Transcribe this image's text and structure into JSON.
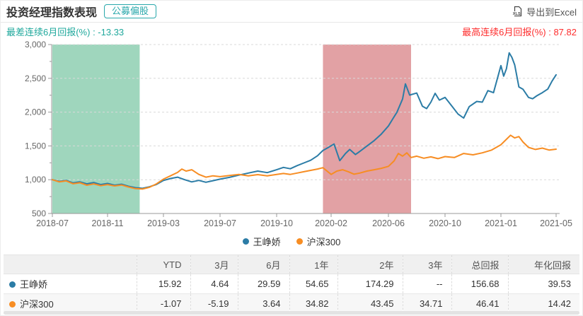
{
  "header": {
    "title": "投资经理指数表现",
    "badge": "公募偏股",
    "export_label": "导出到Excel"
  },
  "stats": {
    "separator": " : ",
    "worst_label": "最差连续6月回报(%)",
    "worst_value": "-13.33",
    "worst_color": "#1fa89c",
    "best_label": "最高连续6月回报(%)",
    "best_value": "87.82",
    "best_color": "#fe2d2d"
  },
  "chart_data": {
    "type": "line",
    "title": "",
    "xlabel": "",
    "ylabel": "",
    "ylim": [
      500,
      3000
    ],
    "y_ticks": [
      500,
      1000,
      1500,
      2000,
      2500,
      3000
    ],
    "grid": "dashed-horizontal",
    "legend_position": "bottom-center",
    "x_unit": "months since 2018-07",
    "x_tick_labels": [
      "2018-07",
      "2018-11",
      "2019-03",
      "2019-07",
      "2019-10",
      "2020-02",
      "2020-06",
      "2020-10",
      "2021-01",
      "2021-05"
    ],
    "series": [
      {
        "name": "王峥娇",
        "color": "#2b7ca6",
        "points": [
          [
            0,
            1000
          ],
          [
            0.5,
            975
          ],
          [
            1,
            990
          ],
          [
            1.5,
            952
          ],
          [
            2,
            968
          ],
          [
            2.5,
            938
          ],
          [
            3,
            958
          ],
          [
            3.5,
            928
          ],
          [
            4,
            945
          ],
          [
            4.5,
            918
          ],
          [
            5,
            933
          ],
          [
            5.5,
            903
          ],
          [
            6,
            882
          ],
          [
            6.5,
            872
          ],
          [
            7,
            895
          ],
          [
            7.5,
            930
          ],
          [
            8,
            988
          ],
          [
            8.5,
            1018
          ],
          [
            9,
            1038
          ],
          [
            9.5,
            1000
          ],
          [
            10,
            968
          ],
          [
            10.5,
            990
          ],
          [
            11,
            962
          ],
          [
            11.5,
            985
          ],
          [
            12,
            1008
          ],
          [
            12.5,
            1035
          ],
          [
            13,
            1068
          ],
          [
            13.5,
            1098
          ],
          [
            14,
            1128
          ],
          [
            14.5,
            1105
          ],
          [
            15,
            1148
          ],
          [
            15.5,
            1182
          ],
          [
            16,
            1162
          ],
          [
            16.5,
            1208
          ],
          [
            17,
            1248
          ],
          [
            17.5,
            1288
          ],
          [
            18,
            1355
          ],
          [
            18.4,
            1432
          ],
          [
            18.8,
            1478
          ],
          [
            19.2,
            1528
          ],
          [
            19.6,
            1282
          ],
          [
            20,
            1388
          ],
          [
            20.3,
            1448
          ],
          [
            20.7,
            1372
          ],
          [
            21,
            1418
          ],
          [
            21.5,
            1498
          ],
          [
            22,
            1578
          ],
          [
            22.5,
            1675
          ],
          [
            23,
            1795
          ],
          [
            23.3,
            1898
          ],
          [
            23.6,
            1998
          ],
          [
            24,
            2195
          ],
          [
            24.2,
            2418
          ],
          [
            24.5,
            2252
          ],
          [
            25,
            2282
          ],
          [
            25.4,
            2088
          ],
          [
            25.7,
            2052
          ],
          [
            26,
            2148
          ],
          [
            26.3,
            2278
          ],
          [
            26.6,
            2178
          ],
          [
            27,
            2218
          ],
          [
            27.4,
            2078
          ],
          [
            27.7,
            1972
          ],
          [
            28,
            1912
          ],
          [
            28.3,
            2082
          ],
          [
            28.7,
            2158
          ],
          [
            29,
            2148
          ],
          [
            29.3,
            2318
          ],
          [
            29.6,
            2288
          ],
          [
            30,
            2688
          ],
          [
            30.2,
            2532
          ],
          [
            30.4,
            2642
          ],
          [
            30.6,
            2878
          ],
          [
            30.8,
            2808
          ],
          [
            31,
            2698
          ],
          [
            31.3,
            2372
          ],
          [
            31.6,
            2338
          ],
          [
            32,
            2218
          ],
          [
            32.3,
            2198
          ],
          [
            32.6,
            2242
          ],
          [
            33,
            2288
          ],
          [
            33.4,
            2342
          ],
          [
            33.7,
            2458
          ],
          [
            34,
            2552
          ]
        ]
      },
      {
        "name": "沪深300",
        "color": "#f78d23",
        "points": [
          [
            0,
            1000
          ],
          [
            0.5,
            968
          ],
          [
            1,
            982
          ],
          [
            1.5,
            940
          ],
          [
            2,
            955
          ],
          [
            2.5,
            918
          ],
          [
            3,
            938
          ],
          [
            3.5,
            912
          ],
          [
            4,
            928
          ],
          [
            4.5,
            908
          ],
          [
            5,
            922
          ],
          [
            5.5,
            892
          ],
          [
            6,
            868
          ],
          [
            6.5,
            862
          ],
          [
            7,
            888
          ],
          [
            7.5,
            938
          ],
          [
            8,
            1008
          ],
          [
            8.5,
            1058
          ],
          [
            9,
            1108
          ],
          [
            9.3,
            1158
          ],
          [
            9.6,
            1128
          ],
          [
            10,
            1148
          ],
          [
            10.5,
            1078
          ],
          [
            11,
            1038
          ],
          [
            11.5,
            1058
          ],
          [
            12,
            1045
          ],
          [
            12.5,
            1062
          ],
          [
            13,
            1078
          ],
          [
            13.5,
            1058
          ],
          [
            14,
            1075
          ],
          [
            14.5,
            1058
          ],
          [
            15,
            1078
          ],
          [
            15.5,
            1092
          ],
          [
            16,
            1078
          ],
          [
            16.5,
            1098
          ],
          [
            17,
            1118
          ],
          [
            17.5,
            1138
          ],
          [
            18,
            1158
          ],
          [
            18.4,
            1178
          ],
          [
            19,
            1078
          ],
          [
            19.4,
            1128
          ],
          [
            19.8,
            1148
          ],
          [
            20.2,
            1118
          ],
          [
            20.6,
            1082
          ],
          [
            21,
            1098
          ],
          [
            21.5,
            1128
          ],
          [
            22,
            1148
          ],
          [
            22.5,
            1168
          ],
          [
            23,
            1198
          ],
          [
            23.4,
            1278
          ],
          [
            23.7,
            1388
          ],
          [
            24,
            1348
          ],
          [
            24.3,
            1398
          ],
          [
            24.6,
            1328
          ],
          [
            25,
            1348
          ],
          [
            25.5,
            1318
          ],
          [
            26,
            1338
          ],
          [
            26.5,
            1312
          ],
          [
            27,
            1342
          ],
          [
            27.5,
            1328
          ],
          [
            28,
            1388
          ],
          [
            28.5,
            1368
          ],
          [
            29,
            1398
          ],
          [
            29.5,
            1438
          ],
          [
            30,
            1518
          ],
          [
            30.4,
            1598
          ],
          [
            30.7,
            1658
          ],
          [
            31,
            1618
          ],
          [
            31.3,
            1638
          ],
          [
            31.6,
            1558
          ],
          [
            32,
            1478
          ],
          [
            32.5,
            1448
          ],
          [
            33,
            1468
          ],
          [
            33.5,
            1438
          ],
          [
            34,
            1452
          ]
        ]
      }
    ],
    "regions": [
      {
        "name": "worst-6-month-window",
        "color": "#9fd6bd",
        "from_month": 0,
        "to_month": 6.3
      },
      {
        "name": "best-6-month-window",
        "color": "#e2a1a4",
        "from_month": 18.4,
        "to_month": 24.6
      }
    ]
  },
  "table": {
    "headers": [
      "",
      "YTD",
      "3月",
      "6月",
      "1年",
      "2年",
      "3年",
      "总回报",
      "年化回报"
    ],
    "rows": [
      {
        "name": "王峥娇",
        "dot_color": "#2b7ca6",
        "values": [
          "15.92",
          "4.64",
          "29.59",
          "54.65",
          "174.29",
          "--",
          "156.68",
          "39.53"
        ]
      },
      {
        "name": "沪深300",
        "dot_color": "#f78d23",
        "values": [
          "-1.07",
          "-5.19",
          "3.64",
          "34.82",
          "43.45",
          "34.71",
          "46.41",
          "14.42"
        ]
      }
    ]
  }
}
